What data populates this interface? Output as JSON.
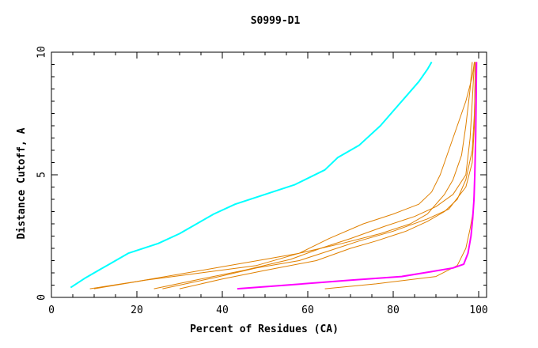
{
  "chart_data": {
    "type": "line",
    "title": "S0999-D1",
    "xlabel": "Percent of Residues (CA)",
    "ylabel": "Distance Cutoff, A",
    "xlim": [
      0,
      100
    ],
    "ylim": [
      0,
      10
    ],
    "xticks": [
      0,
      20,
      40,
      60,
      80,
      100
    ],
    "yticks": [
      0,
      5,
      10
    ],
    "grid": false,
    "legend": "none",
    "colors": {
      "cyan": "#00ffff",
      "orange": "#e08000",
      "magenta": "#ff00ff"
    },
    "series": [
      {
        "color": "cyan",
        "points": [
          [
            4.5,
            0.4
          ],
          [
            8,
            0.8
          ],
          [
            13,
            1.3
          ],
          [
            18,
            1.8
          ],
          [
            25,
            2.2
          ],
          [
            30,
            2.6
          ],
          [
            34,
            3.0
          ],
          [
            38,
            3.4
          ],
          [
            43,
            3.8
          ],
          [
            50,
            4.2
          ],
          [
            57,
            4.6
          ],
          [
            64,
            5.2
          ],
          [
            67,
            5.7
          ],
          [
            72,
            6.2
          ],
          [
            77,
            7.0
          ],
          [
            80,
            7.6
          ],
          [
            83,
            8.2
          ],
          [
            86,
            8.8
          ],
          [
            88,
            9.3
          ],
          [
            89,
            9.6
          ]
        ]
      },
      {
        "color": "orange",
        "points": [
          [
            9,
            0.35
          ],
          [
            20,
            0.65
          ],
          [
            30,
            0.95
          ],
          [
            40,
            1.25
          ],
          [
            50,
            1.55
          ],
          [
            58,
            1.8
          ],
          [
            68,
            2.2
          ],
          [
            77,
            2.6
          ],
          [
            84,
            3.0
          ],
          [
            88,
            3.4
          ],
          [
            90,
            3.8
          ],
          [
            92,
            4.2
          ],
          [
            94,
            4.8
          ],
          [
            96,
            5.8
          ],
          [
            97,
            7.0
          ],
          [
            98,
            8.5
          ],
          [
            98.5,
            9.6
          ]
        ]
      },
      {
        "color": "orange",
        "points": [
          [
            10,
            0.35
          ],
          [
            22,
            0.7
          ],
          [
            35,
            1.0
          ],
          [
            48,
            1.3
          ],
          [
            58,
            1.8
          ],
          [
            65,
            2.4
          ],
          [
            73,
            3.0
          ],
          [
            80,
            3.4
          ],
          [
            86,
            3.8
          ],
          [
            89,
            4.3
          ],
          [
            91,
            5.0
          ],
          [
            93,
            6.0
          ],
          [
            95,
            7.0
          ],
          [
            97,
            8.0
          ],
          [
            98.5,
            9.0
          ],
          [
            99,
            9.6
          ]
        ]
      },
      {
        "color": "orange",
        "points": [
          [
            24,
            0.35
          ],
          [
            35,
            0.75
          ],
          [
            45,
            1.1
          ],
          [
            56,
            1.55
          ],
          [
            63,
            2.0
          ],
          [
            70,
            2.4
          ],
          [
            78,
            2.9
          ],
          [
            85,
            3.3
          ],
          [
            90,
            3.7
          ],
          [
            94,
            4.2
          ],
          [
            97,
            5.0
          ],
          [
            98,
            6.5
          ],
          [
            98.5,
            8.0
          ],
          [
            99,
            9.6
          ]
        ]
      },
      {
        "color": "orange",
        "points": [
          [
            26,
            0.35
          ],
          [
            38,
            0.8
          ],
          [
            48,
            1.2
          ],
          [
            58,
            1.5
          ],
          [
            65,
            1.9
          ],
          [
            72,
            2.3
          ],
          [
            80,
            2.7
          ],
          [
            88,
            3.2
          ],
          [
            93,
            3.6
          ],
          [
            97,
            4.5
          ],
          [
            98.5,
            5.5
          ],
          [
            99,
            7.0
          ],
          [
            99.2,
            9.6
          ]
        ]
      },
      {
        "color": "orange",
        "points": [
          [
            30,
            0.35
          ],
          [
            40,
            0.75
          ],
          [
            50,
            1.1
          ],
          [
            62,
            1.5
          ],
          [
            70,
            2.0
          ],
          [
            76,
            2.3
          ],
          [
            83,
            2.7
          ],
          [
            88,
            3.1
          ],
          [
            92,
            3.5
          ],
          [
            95,
            4.0
          ],
          [
            97,
            4.8
          ],
          [
            98.5,
            6.0
          ],
          [
            99,
            7.5
          ],
          [
            99.3,
            9.6
          ]
        ]
      },
      {
        "color": "orange",
        "points": [
          [
            64,
            0.35
          ],
          [
            76,
            0.55
          ],
          [
            90,
            0.85
          ],
          [
            95,
            1.3
          ],
          [
            97,
            2.0
          ],
          [
            98,
            2.8
          ],
          [
            98.7,
            3.5
          ],
          [
            99,
            4.5
          ],
          [
            99.2,
            6.0
          ],
          [
            99.4,
            8.0
          ],
          [
            99.5,
            9.6
          ]
        ]
      },
      {
        "color": "magenta",
        "points": [
          [
            43.5,
            0.35
          ],
          [
            55,
            0.5
          ],
          [
            70,
            0.7
          ],
          [
            82,
            0.85
          ],
          [
            89,
            1.05
          ],
          [
            94,
            1.2
          ],
          [
            96.5,
            1.35
          ],
          [
            97.5,
            1.8
          ],
          [
            98.2,
            2.5
          ],
          [
            98.6,
            3.2
          ],
          [
            98.9,
            4.0
          ],
          [
            99.1,
            5.0
          ],
          [
            99.3,
            6.5
          ],
          [
            99.4,
            8.0
          ],
          [
            99.5,
            9.6
          ]
        ]
      }
    ]
  }
}
